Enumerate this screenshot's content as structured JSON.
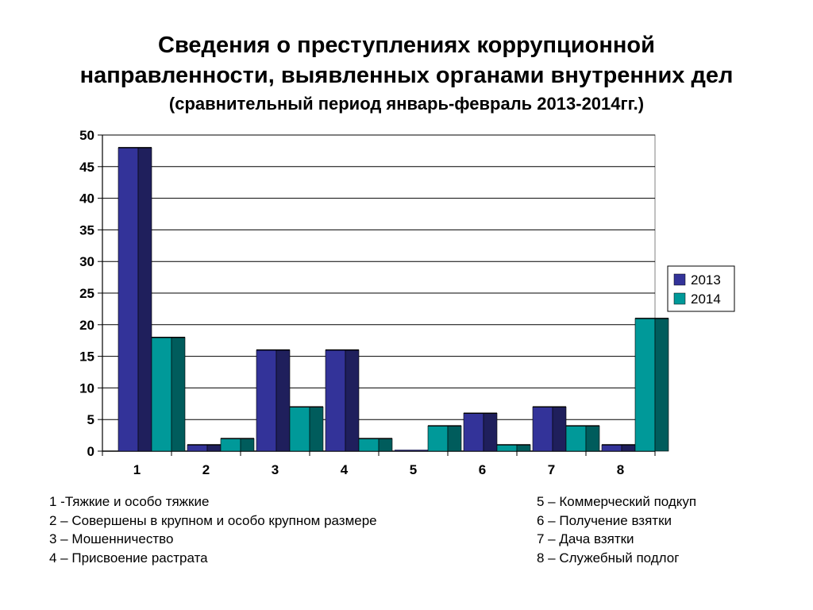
{
  "title": {
    "line1": "Сведения о преступлениях коррупционной",
    "line2": "направленности, выявленных органами внутренних дел",
    "line3": "(сравнительный период январь-февраль 2013-2014гг.)"
  },
  "chart_data": {
    "type": "bar",
    "categories": [
      "1",
      "2",
      "3",
      "4",
      "5",
      "6",
      "7",
      "8"
    ],
    "series": [
      {
        "name": "2013",
        "values": [
          48,
          1,
          16,
          16,
          0,
          6,
          7,
          1
        ]
      },
      {
        "name": "2014",
        "values": [
          18,
          2,
          7,
          2,
          4,
          1,
          4,
          21
        ]
      }
    ],
    "ylim": [
      0,
      50
    ],
    "yticks": [
      "0",
      "5",
      "10",
      "15",
      "20",
      "25",
      "30",
      "35",
      "40",
      "45",
      "50"
    ],
    "grid": true,
    "legend_position": "right",
    "colors": {
      "s2013_front": "#333399",
      "s2013_side": "#1f1f5c",
      "s2014_front": "#009999",
      "s2014_side": "#005c5c"
    }
  },
  "captions": {
    "left": [
      "1 -Тяжкие и особо тяжкие",
      "2 – Совершены в крупном и особо крупном размере",
      "3 – Мошенничество",
      "4 – Присвоение растрата"
    ],
    "right": [
      "5 – Коммерческий подкуп",
      "6 – Получение взятки",
      "7 – Дача взятки",
      "8 – Служебный подлог"
    ]
  }
}
